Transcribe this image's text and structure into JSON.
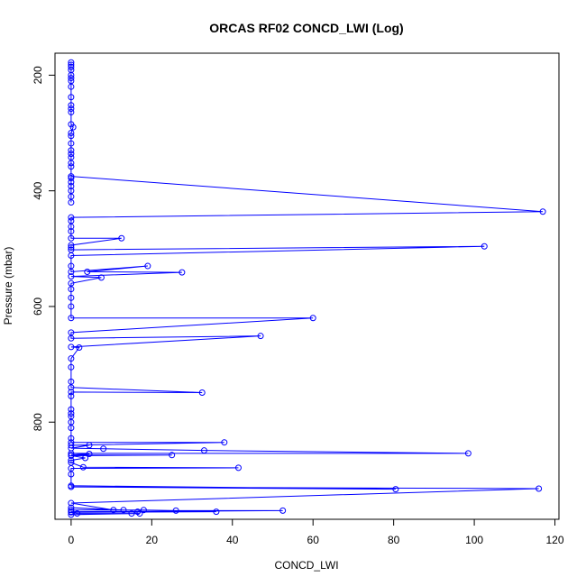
{
  "chart_data": {
    "type": "scatter",
    "title": "ORCAS RF02 CONCD_LWI (Log)",
    "xlabel": "CONCD_LWI",
    "ylabel": "Pressure (mbar)",
    "xlim": [
      -4,
      121
    ],
    "ylim": [
      162,
      968
    ],
    "y_inverted": true,
    "grid": false,
    "x_ticks": [
      0,
      20,
      40,
      60,
      80,
      100,
      120
    ],
    "y_ticks": [
      200,
      400,
      600,
      800
    ],
    "series_color": "#0000ff",
    "points_connected": true,
    "points": [
      [
        0,
        178
      ],
      [
        0,
        182
      ],
      [
        0,
        186
      ],
      [
        0,
        191
      ],
      [
        0,
        200
      ],
      [
        0,
        205
      ],
      [
        0,
        210
      ],
      [
        0,
        220
      ],
      [
        0,
        238
      ],
      [
        0,
        252
      ],
      [
        0,
        258
      ],
      [
        0,
        264
      ],
      [
        0,
        285
      ],
      [
        0.5,
        290
      ],
      [
        0,
        300
      ],
      [
        0,
        305
      ],
      [
        0,
        318
      ],
      [
        0,
        330
      ],
      [
        0,
        336
      ],
      [
        0,
        342
      ],
      [
        0,
        352
      ],
      [
        0,
        358
      ],
      [
        0,
        378
      ],
      [
        0,
        385
      ],
      [
        0,
        392
      ],
      [
        0,
        400
      ],
      [
        0,
        410
      ],
      [
        0,
        420
      ],
      [
        0,
        375
      ],
      [
        117,
        436
      ],
      [
        0,
        446
      ],
      [
        0,
        452
      ],
      [
        0,
        462
      ],
      [
        0,
        470
      ],
      [
        0,
        482
      ],
      [
        12.5,
        482
      ],
      [
        0,
        494
      ],
      [
        0,
        498
      ],
      [
        0,
        502
      ],
      [
        102.5,
        496
      ],
      [
        0,
        512
      ],
      [
        0,
        530
      ],
      [
        0,
        540
      ],
      [
        19,
        530
      ],
      [
        4,
        540
      ],
      [
        27.5,
        541
      ],
      [
        0,
        548
      ],
      [
        7.5,
        550
      ],
      [
        0,
        560
      ],
      [
        0,
        570
      ],
      [
        0,
        585
      ],
      [
        0,
        600
      ],
      [
        0,
        620
      ],
      [
        60,
        620
      ],
      [
        0,
        645
      ],
      [
        0,
        655
      ],
      [
        47,
        651
      ],
      [
        0,
        670
      ],
      [
        2,
        671
      ],
      [
        0,
        690
      ],
      [
        0,
        705
      ],
      [
        0,
        730
      ],
      [
        0,
        740
      ],
      [
        32.5,
        749
      ],
      [
        0,
        748
      ],
      [
        0,
        755
      ],
      [
        0,
        778
      ],
      [
        0,
        785
      ],
      [
        0,
        790
      ],
      [
        0,
        800
      ],
      [
        0,
        810
      ],
      [
        0,
        828
      ],
      [
        0,
        835
      ],
      [
        38,
        835
      ],
      [
        0,
        840
      ],
      [
        4.5,
        840
      ],
      [
        0,
        845
      ],
      [
        8,
        846
      ],
      [
        33,
        849
      ],
      [
        98.5,
        854
      ],
      [
        0,
        854
      ],
      [
        4.5,
        855
      ],
      [
        0,
        857
      ],
      [
        25,
        857
      ],
      [
        0,
        858
      ],
      [
        3.5,
        862
      ],
      [
        0,
        866
      ],
      [
        0,
        870
      ],
      [
        3,
        878
      ],
      [
        41.5,
        879
      ],
      [
        0,
        880
      ],
      [
        0,
        890
      ],
      [
        0,
        910
      ],
      [
        80.5,
        916
      ],
      [
        0,
        912
      ],
      [
        116,
        915
      ],
      [
        0,
        940
      ],
      [
        10.5,
        952
      ],
      [
        0,
        948
      ],
      [
        13,
        952
      ],
      [
        0,
        952
      ],
      [
        18,
        952
      ],
      [
        26,
        953
      ],
      [
        52.5,
        953
      ],
      [
        0,
        955
      ],
      [
        16.5,
        955
      ],
      [
        36,
        955
      ],
      [
        0,
        956
      ],
      [
        1.5,
        958
      ],
      [
        15,
        958
      ],
      [
        17,
        958
      ],
      [
        0,
        960
      ]
    ]
  }
}
